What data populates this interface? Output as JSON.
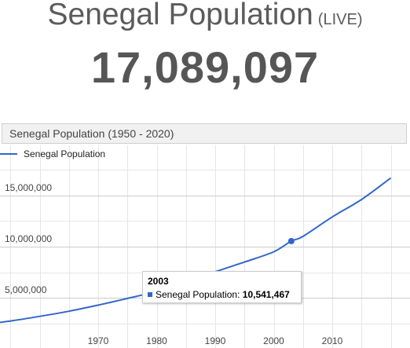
{
  "header": {
    "title": "Senegal Population",
    "live_label": "(LIVE)",
    "counter": "17,089,097"
  },
  "chart_header": {
    "title": "Senegal Population (1950 - 2020)"
  },
  "tooltip": {
    "year": "2003",
    "series_label": "Senegal Population:",
    "value": "10,541,467"
  },
  "colors": {
    "line": "#3366cc",
    "grid": "#e6e6e6",
    "major_grid": "#cccccc",
    "axis_text": "#444444"
  },
  "chart_data": {
    "type": "line",
    "title": "Senegal Population (1950 - 2020)",
    "xlabel": "",
    "ylabel": "",
    "xlim": [
      1950,
      2020
    ],
    "ylim": [
      0,
      17500000
    ],
    "x_ticks": [
      1970,
      1980,
      1990,
      2000,
      2010
    ],
    "x_tick_labels": [
      "1970",
      "1980",
      "1990",
      "2000",
      "2010"
    ],
    "y_ticks": [
      5000000,
      10000000,
      15000000
    ],
    "y_tick_labels": [
      "5,000,000",
      "10,000,000",
      "15,000,000"
    ],
    "legend_position": "top-left",
    "grid": true,
    "series": [
      {
        "name": "Senegal Population",
        "x": [
          1950,
          1955,
          1960,
          1965,
          1970,
          1975,
          1980,
          1985,
          1990,
          1995,
          2000,
          2003,
          2005,
          2010,
          2015,
          2020
        ],
        "y": [
          2400000,
          2750000,
          3200000,
          3700000,
          4300000,
          4950000,
          5650000,
          6550000,
          7550000,
          8500000,
          9500000,
          10541467,
          11000000,
          12900000,
          14600000,
          16700000
        ]
      }
    ],
    "highlight": {
      "x": 2003,
      "y": 10541467
    }
  }
}
